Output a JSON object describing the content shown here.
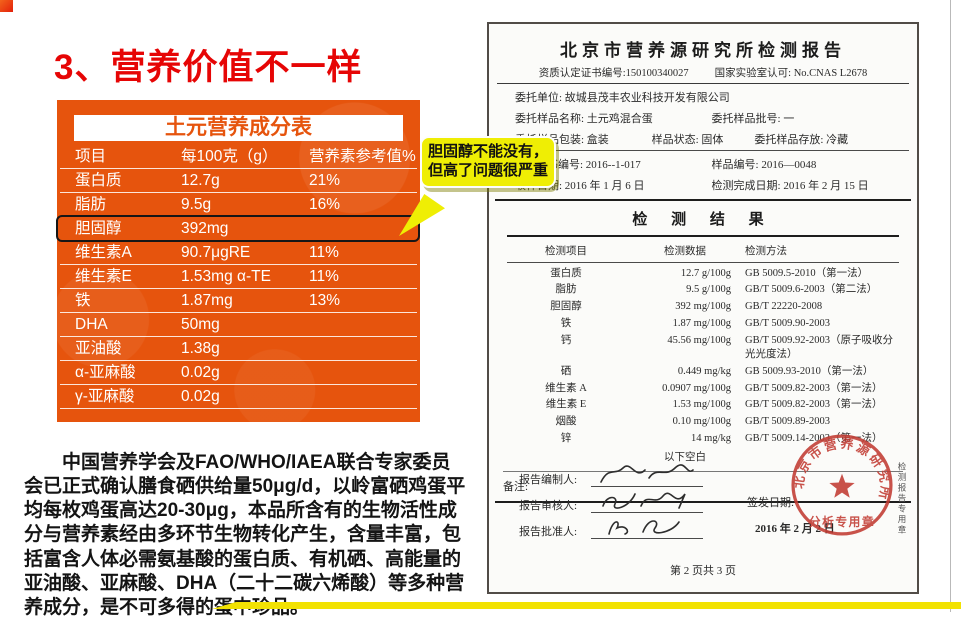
{
  "colors": {
    "title_red": "#e60505",
    "table_orange": "#e6540d",
    "bubble_yellow": "#efee04",
    "stamp_red": "#c23b32",
    "bottom_bar_yellow": "#f2e202"
  },
  "slide": {
    "title": "3、营养价值不一样",
    "callout": "胆固醇不能没有，但高了问题很严重",
    "paragraph": "中国营养学会及FAO/WHO/IAEA联合专家委员会已正式确认膳食硒供给量50μg/d，以岭富硒鸡蛋平均每枚鸡蛋高达20-30μg，本品所含有的生物活性成分与营养素经由多环节生物转化产生，含量丰富，包括富含人体必需氨基酸的蛋白质、有机硒、高能量的亚油酸、亚麻酸、DHA（二十二碳六烯酸）等多种营养成分，是不可多得的蛋中珍品。"
  },
  "nutrition_table": {
    "title": "土元营养成分表",
    "columns": [
      "项目",
      "每100克（g）",
      "营养素参考值%"
    ],
    "rows": [
      {
        "name": "蛋白质",
        "value": "12.7g",
        "ref": "21%",
        "highlight": false
      },
      {
        "name": "脂肪",
        "value": "9.5g",
        "ref": "16%",
        "highlight": false
      },
      {
        "name": "胆固醇",
        "value": "392mg",
        "ref": "",
        "highlight": true
      },
      {
        "name": "维生素A",
        "value": "90.7μgRE",
        "ref": "11%",
        "highlight": false
      },
      {
        "name": "维生素E",
        "value": "1.53mg α-TE",
        "ref": "11%",
        "highlight": false
      },
      {
        "name": "铁",
        "value": "1.87mg",
        "ref": "13%",
        "highlight": false
      },
      {
        "name": "DHA",
        "value": "50mg",
        "ref": "",
        "highlight": false
      },
      {
        "name": "亚油酸",
        "value": "1.38g",
        "ref": "",
        "highlight": false
      },
      {
        "name": "α-亚麻酸",
        "value": "0.02g",
        "ref": "",
        "highlight": false
      },
      {
        "name": "γ-亚麻酸",
        "value": "0.02g",
        "ref": "",
        "highlight": false
      }
    ]
  },
  "report": {
    "title": "北京市营养源研究所检测报告",
    "cert_left": "资质认定证书编号:150100340027",
    "cert_right": "国家实验室认可: No.CNAS L2678",
    "client_unit": "委托单位: 故城县茂丰农业科技开发有限公司",
    "sample_name": "委托样品名称: 土元鸡混合蛋",
    "sample_batch": "委托样品批号: 一",
    "sample_pack": "委托样品包装: 盒装",
    "sample_state": "样品状态: 固体",
    "sample_storage": "委托样品存放: 冷藏",
    "agreement_no": "委托协议书编号: 2016--1-017",
    "sample_no": "样品编号: 2016—0048",
    "receive_date": "收样日期: 2016 年 1 月 6 日",
    "complete_date": "检测完成日期: 2016 年 2 月 15 日",
    "section_title": "检 测 结 果",
    "results": {
      "columns": [
        "检测项目",
        "检测数据",
        "检测方法"
      ],
      "rows": [
        {
          "item": "蛋白质",
          "data": "12.7 g/100g",
          "method": "GB 5009.5-2010（第一法）"
        },
        {
          "item": "脂肪",
          "data": "9.5 g/100g",
          "method": "GB/T 5009.6-2003（第二法）"
        },
        {
          "item": "胆固醇",
          "data": "392 mg/100g",
          "method": "GB/T 22220-2008"
        },
        {
          "item": "铁",
          "data": "1.87 mg/100g",
          "method": "GB/T 5009.90-2003"
        },
        {
          "item": "钙",
          "data": "45.56 mg/100g",
          "method": "GB/T 5009.92-2003（原子吸收分光光度法）"
        },
        {
          "item": "硒",
          "data": "0.449 mg/kg",
          "method": "GB 5009.93-2010（第一法）"
        },
        {
          "item": "维生素 A",
          "data": "0.0907 mg/100g",
          "method": "GB/T 5009.82-2003（第一法）"
        },
        {
          "item": "维生素 E",
          "data": "1.53 mg/100g",
          "method": "GB/T 5009.82-2003（第一法）"
        },
        {
          "item": "烟酸",
          "data": "0.10 mg/100g",
          "method": "GB/T 5009.89-2003"
        },
        {
          "item": "锌",
          "data": "14 mg/kg",
          "method": "GB/T 5009.14-2003（第一法）"
        }
      ],
      "end_note": "以下空白"
    },
    "remark_label": "备注:",
    "signatures": {
      "prepared_label": "报告编制人:",
      "reviewed_label": "报告审核人:",
      "approved_label": "报告批准人:",
      "issue_date_label": "签发日期:",
      "issue_date": "2016 年 2 月 2 日"
    },
    "stamp": {
      "ring_text": "北京市营养源研究所",
      "bottom_text": "分析专用章"
    },
    "side_note": "检测报告专用章",
    "page_footer": "第 2 页共 3 页"
  }
}
